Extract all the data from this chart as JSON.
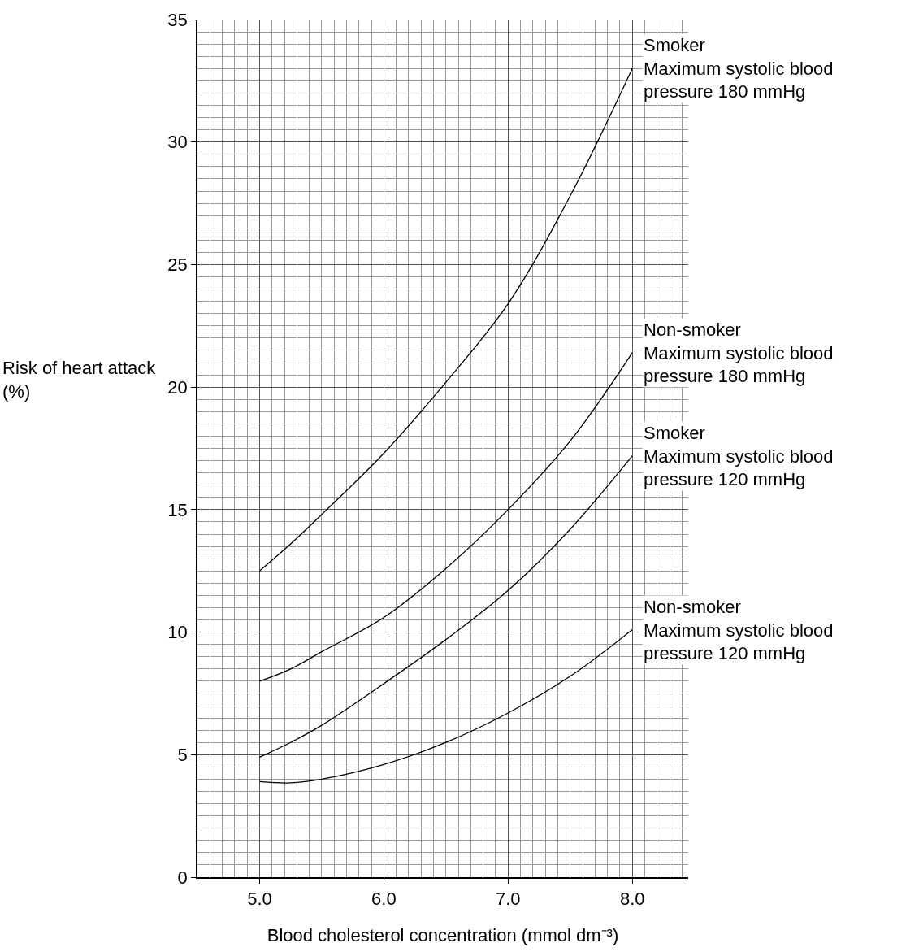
{
  "chart_data": {
    "type": "line",
    "xlabel": "Blood cholesterol concentration (mmol dm⁻³)",
    "ylabel": "Risk of heart attack\n(%)",
    "x": [
      5.0,
      5.25,
      5.5,
      6.0,
      6.5,
      7.0,
      7.5,
      8.0
    ],
    "series": [
      {
        "name": "Smoker\nMaximum systolic blood\npressure 180 mmHg",
        "color": "#000000",
        "values": [
          12.5,
          13.6,
          14.8,
          17.3,
          20.2,
          23.4,
          27.8,
          33.0
        ]
      },
      {
        "name": "Non-smoker\nMaximum systolic blood\npressure 180 mmHg",
        "color": "#000000",
        "values": [
          8.0,
          8.5,
          9.2,
          10.6,
          12.6,
          15.0,
          17.8,
          21.4
        ]
      },
      {
        "name": "Smoker\nMaximum systolic blood\npressure 120 mmHg",
        "color": "#000000",
        "values": [
          4.9,
          5.5,
          6.2,
          7.9,
          9.7,
          11.7,
          14.2,
          17.2
        ]
      },
      {
        "name": "Non-smoker\nMaximum systolic blood\npressure 120 mmHg",
        "color": "#000000",
        "values": [
          3.9,
          3.85,
          4.0,
          4.6,
          5.5,
          6.7,
          8.2,
          10.1
        ]
      }
    ],
    "xlim": [
      4.5,
      8.45
    ],
    "xticks": [
      {
        "value": 5,
        "label": "5.0"
      },
      {
        "value": 6,
        "label": "6.0"
      },
      {
        "value": 7,
        "label": "7.0"
      },
      {
        "value": 8,
        "label": "8.0"
      }
    ],
    "ylim": [
      0,
      35
    ],
    "yticks": [
      0,
      5,
      10,
      15,
      20,
      25,
      30,
      35
    ],
    "grid": true,
    "legend": false,
    "marker": "none",
    "line_style": "solid"
  }
}
